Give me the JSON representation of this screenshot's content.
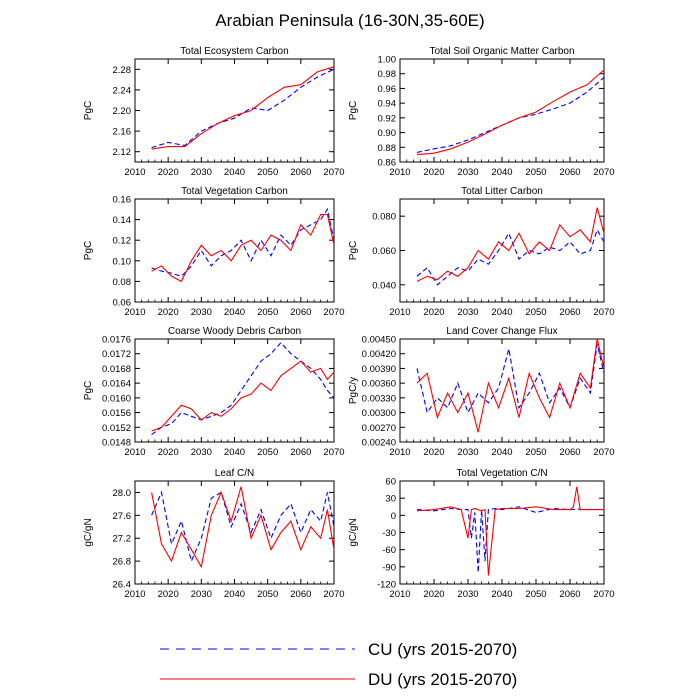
{
  "figure": {
    "title": "Arabian Peninsula (16-30N,35-60E)",
    "legend": [
      {
        "label": "CU (yrs 2015-2070)",
        "color": "#0000ff",
        "dash": true
      },
      {
        "label": "DU (yrs 2015-2070)",
        "color": "#ff0000",
        "dash": false
      }
    ],
    "colors": {
      "cu": "#0000ff",
      "du": "#ff0000",
      "axis": "#000000",
      "background": "#ffffff"
    }
  },
  "chart_data": [
    {
      "type": "line",
      "title": "Total Ecosystem Carbon",
      "ylabel": "PgC",
      "xlim": [
        2010,
        2070
      ],
      "ylim": [
        2.1,
        2.3
      ],
      "xticks": [
        2010,
        2020,
        2030,
        2040,
        2050,
        2060,
        2070
      ],
      "xtick_labels": [
        "2010",
        "2020",
        "2030",
        "2040",
        "2050",
        "2060",
        "2070"
      ],
      "yticks": [
        2.12,
        2.16,
        2.2,
        2.24,
        2.28
      ],
      "ytick_labels": [
        "2.12",
        "2.16",
        "2.20",
        "2.24",
        "2.28"
      ],
      "x": [
        2015,
        2020,
        2025,
        2030,
        2035,
        2040,
        2045,
        2050,
        2055,
        2060,
        2065,
        2070
      ],
      "series": [
        {
          "name": "CU",
          "color": "#0000ff",
          "dashed": true,
          "values": [
            2.128,
            2.138,
            2.132,
            2.16,
            2.175,
            2.185,
            2.205,
            2.2,
            2.22,
            2.245,
            2.265,
            2.28
          ]
        },
        {
          "name": "DU",
          "color": "#ff0000",
          "dashed": false,
          "values": [
            2.125,
            2.13,
            2.13,
            2.155,
            2.175,
            2.19,
            2.2,
            2.225,
            2.245,
            2.25,
            2.275,
            2.285
          ]
        }
      ]
    },
    {
      "type": "line",
      "title": "Total Soil Organic Matter Carbon",
      "ylabel": "PgC",
      "xlim": [
        2010,
        2070
      ],
      "ylim": [
        0.86,
        1.0
      ],
      "xticks": [
        2010,
        2020,
        2030,
        2040,
        2050,
        2060,
        2070
      ],
      "xtick_labels": [
        "2010",
        "2020",
        "2030",
        "2040",
        "2050",
        "2060",
        "2070"
      ],
      "yticks": [
        0.86,
        0.88,
        0.9,
        0.92,
        0.94,
        0.96,
        0.98,
        1.0
      ],
      "ytick_labels": [
        "0.86",
        "0.88",
        "0.90",
        "0.92",
        "0.94",
        "0.96",
        "0.98",
        "1.00"
      ],
      "x": [
        2015,
        2020,
        2025,
        2030,
        2035,
        2040,
        2045,
        2050,
        2055,
        2060,
        2065,
        2070
      ],
      "series": [
        {
          "name": "CU",
          "color": "#0000ff",
          "dashed": true,
          "values": [
            0.873,
            0.878,
            0.882,
            0.89,
            0.9,
            0.91,
            0.92,
            0.925,
            0.932,
            0.94,
            0.955,
            0.975
          ]
        },
        {
          "name": "DU",
          "color": "#ff0000",
          "dashed": false,
          "values": [
            0.87,
            0.872,
            0.878,
            0.887,
            0.898,
            0.91,
            0.92,
            0.928,
            0.942,
            0.955,
            0.965,
            0.985
          ]
        }
      ]
    },
    {
      "type": "line",
      "title": "Total Vegetation Carbon",
      "ylabel": "PgC",
      "xlim": [
        2010,
        2070
      ],
      "ylim": [
        0.06,
        0.16
      ],
      "xticks": [
        2010,
        2020,
        2030,
        2040,
        2050,
        2060,
        2070
      ],
      "xtick_labels": [
        "2010",
        "2020",
        "2030",
        "2040",
        "2050",
        "2060",
        "2070"
      ],
      "yticks": [
        0.06,
        0.08,
        0.1,
        0.12,
        0.14,
        0.16
      ],
      "ytick_labels": [
        "0.06",
        "0.08",
        "0.10",
        "0.12",
        "0.14",
        "0.16"
      ],
      "x": [
        2015,
        2018,
        2021,
        2024,
        2027,
        2030,
        2033,
        2036,
        2039,
        2042,
        2045,
        2048,
        2051,
        2054,
        2057,
        2060,
        2063,
        2066,
        2068,
        2070
      ],
      "series": [
        {
          "name": "CU",
          "color": "#0000ff",
          "dashed": true,
          "values": [
            0.093,
            0.09,
            0.088,
            0.085,
            0.095,
            0.11,
            0.095,
            0.105,
            0.11,
            0.12,
            0.1,
            0.12,
            0.105,
            0.125,
            0.115,
            0.13,
            0.135,
            0.14,
            0.15,
            0.12
          ]
        },
        {
          "name": "DU",
          "color": "#ff0000",
          "dashed": false,
          "values": [
            0.09,
            0.095,
            0.085,
            0.08,
            0.1,
            0.115,
            0.105,
            0.11,
            0.1,
            0.115,
            0.12,
            0.11,
            0.125,
            0.12,
            0.11,
            0.135,
            0.125,
            0.145,
            0.145,
            0.115
          ]
        }
      ]
    },
    {
      "type": "line",
      "title": "Total Litter Carbon",
      "ylabel": "PgC",
      "xlim": [
        2010,
        2070
      ],
      "ylim": [
        0.03,
        0.09
      ],
      "xticks": [
        2010,
        2020,
        2030,
        2040,
        2050,
        2060,
        2070
      ],
      "xtick_labels": [
        "2010",
        "2020",
        "2030",
        "2040",
        "2050",
        "2060",
        "2070"
      ],
      "yticks": [
        0.04,
        0.06,
        0.08
      ],
      "ytick_labels": [
        "0.040",
        "0.060",
        "0.080"
      ],
      "x": [
        2015,
        2018,
        2021,
        2024,
        2027,
        2030,
        2033,
        2036,
        2039,
        2042,
        2045,
        2048,
        2051,
        2054,
        2057,
        2060,
        2063,
        2066,
        2068,
        2070
      ],
      "series": [
        {
          "name": "CU",
          "color": "#0000ff",
          "dashed": true,
          "values": [
            0.045,
            0.05,
            0.04,
            0.045,
            0.05,
            0.048,
            0.055,
            0.052,
            0.06,
            0.07,
            0.055,
            0.06,
            0.058,
            0.062,
            0.06,
            0.065,
            0.058,
            0.06,
            0.072,
            0.065
          ]
        },
        {
          "name": "DU",
          "color": "#ff0000",
          "dashed": false,
          "values": [
            0.042,
            0.045,
            0.043,
            0.048,
            0.045,
            0.05,
            0.06,
            0.055,
            0.065,
            0.06,
            0.07,
            0.058,
            0.065,
            0.06,
            0.075,
            0.068,
            0.072,
            0.065,
            0.085,
            0.07
          ]
        }
      ]
    },
    {
      "type": "line",
      "title": "Coarse Woody Debris Carbon",
      "ylabel": "PgC",
      "xlim": [
        2010,
        2070
      ],
      "ylim": [
        0.0148,
        0.0176
      ],
      "xticks": [
        2010,
        2020,
        2030,
        2040,
        2050,
        2060,
        2070
      ],
      "xtick_labels": [
        "2010",
        "2020",
        "2030",
        "2040",
        "2050",
        "2060",
        "2070"
      ],
      "yticks": [
        0.0148,
        0.0152,
        0.0156,
        0.016,
        0.0164,
        0.0168,
        0.0172,
        0.0176
      ],
      "ytick_labels": [
        "0.0148",
        "0.0152",
        "0.0156",
        "0.0160",
        "0.0164",
        "0.0168",
        "0.0172",
        "0.0176"
      ],
      "x": [
        2015,
        2018,
        2021,
        2024,
        2027,
        2030,
        2033,
        2036,
        2039,
        2042,
        2045,
        2048,
        2051,
        2054,
        2057,
        2060,
        2063,
        2066,
        2068,
        2070
      ],
      "series": [
        {
          "name": "CU",
          "color": "#0000ff",
          "dashed": true,
          "values": [
            0.015,
            0.0152,
            0.0153,
            0.0156,
            0.0155,
            0.0154,
            0.0155,
            0.0156,
            0.0158,
            0.0162,
            0.0166,
            0.017,
            0.0172,
            0.0175,
            0.0172,
            0.017,
            0.0168,
            0.0165,
            0.0162,
            0.016
          ]
        },
        {
          "name": "DU",
          "color": "#ff0000",
          "dashed": false,
          "values": [
            0.0151,
            0.0152,
            0.0155,
            0.0158,
            0.0157,
            0.0154,
            0.0156,
            0.0155,
            0.0157,
            0.016,
            0.0161,
            0.0164,
            0.0162,
            0.0166,
            0.0168,
            0.017,
            0.0167,
            0.0168,
            0.0165,
            0.0167
          ]
        }
      ]
    },
    {
      "type": "line",
      "title": "Land Cover Change Flux",
      "ylabel": "PgC/y",
      "xlim": [
        2010,
        2070
      ],
      "ylim": [
        0.0024,
        0.0045
      ],
      "xticks": [
        2010,
        2020,
        2030,
        2040,
        2050,
        2060,
        2070
      ],
      "xtick_labels": [
        "2010",
        "2020",
        "2030",
        "2040",
        "2050",
        "2060",
        "2070"
      ],
      "yticks": [
        0.0024,
        0.0027,
        0.003,
        0.0033,
        0.0036,
        0.0039,
        0.0042,
        0.0045
      ],
      "ytick_labels": [
        "0.00240",
        "0.00270",
        "0.00300",
        "0.00330",
        "0.00360",
        "0.00390",
        "0.00420",
        "0.00450"
      ],
      "x": [
        2015,
        2018,
        2021,
        2024,
        2027,
        2030,
        2033,
        2036,
        2039,
        2042,
        2045,
        2048,
        2051,
        2054,
        2057,
        2060,
        2063,
        2066,
        2068,
        2070
      ],
      "series": [
        {
          "name": "CU",
          "color": "#0000ff",
          "dashed": true,
          "values": [
            0.0039,
            0.003,
            0.0033,
            0.0031,
            0.0036,
            0.003,
            0.0034,
            0.0032,
            0.0035,
            0.0043,
            0.0031,
            0.0034,
            0.0038,
            0.0032,
            0.0035,
            0.0031,
            0.0037,
            0.0034,
            0.0044,
            0.0038
          ]
        },
        {
          "name": "DU",
          "color": "#ff0000",
          "dashed": false,
          "values": [
            0.0036,
            0.0038,
            0.0029,
            0.0034,
            0.003,
            0.0034,
            0.0026,
            0.0036,
            0.0031,
            0.0037,
            0.0029,
            0.0038,
            0.0033,
            0.0029,
            0.0036,
            0.0031,
            0.0038,
            0.0035,
            0.0045,
            0.0039
          ]
        }
      ]
    },
    {
      "type": "line",
      "title": "Leaf C/N",
      "ylabel": "gC/gN",
      "xlim": [
        2010,
        2070
      ],
      "ylim": [
        26.4,
        28.2
      ],
      "xticks": [
        2010,
        2020,
        2030,
        2040,
        2050,
        2060,
        2070
      ],
      "xtick_labels": [
        "2010",
        "2020",
        "2030",
        "2040",
        "2050",
        "2060",
        "2070"
      ],
      "yticks": [
        26.4,
        26.8,
        27.2,
        27.6,
        28.0
      ],
      "ytick_labels": [
        "26.4",
        "26.8",
        "27.2",
        "27.6",
        "28.0"
      ],
      "x": [
        2015,
        2018,
        2021,
        2024,
        2027,
        2030,
        2033,
        2036,
        2039,
        2042,
        2045,
        2048,
        2051,
        2054,
        2057,
        2060,
        2063,
        2066,
        2068,
        2070
      ],
      "series": [
        {
          "name": "CU",
          "color": "#0000ff",
          "dashed": true,
          "values": [
            27.6,
            28.0,
            27.1,
            27.5,
            26.8,
            27.2,
            27.9,
            28.0,
            27.4,
            27.8,
            27.3,
            27.7,
            27.2,
            27.6,
            27.8,
            27.3,
            27.7,
            27.5,
            28.0,
            27.4
          ]
        },
        {
          "name": "DU",
          "color": "#ff0000",
          "dashed": false,
          "values": [
            28.0,
            27.1,
            26.8,
            27.3,
            27.0,
            26.7,
            27.6,
            28.0,
            27.5,
            28.1,
            27.2,
            27.6,
            27.0,
            27.3,
            27.5,
            27.0,
            27.4,
            27.2,
            27.7,
            27.0
          ]
        }
      ]
    },
    {
      "type": "line",
      "title": "Total Vegetation C/N",
      "ylabel": "gC/gN",
      "xlim": [
        2010,
        2070
      ],
      "ylim": [
        -120,
        60
      ],
      "xticks": [
        2010,
        2020,
        2030,
        2040,
        2050,
        2060,
        2070
      ],
      "xtick_labels": [
        "2010",
        "2020",
        "2030",
        "2040",
        "2050",
        "2060",
        "2070"
      ],
      "yticks": [
        -120,
        -90,
        -60,
        -30,
        0,
        30,
        60
      ],
      "ytick_labels": [
        "-120",
        "-90",
        "-60",
        "-30",
        "0",
        "30",
        "60"
      ],
      "x": [
        2015,
        2020,
        2025,
        2028,
        2030,
        2031,
        2032,
        2033,
        2034,
        2035,
        2036,
        2038,
        2040,
        2045,
        2050,
        2055,
        2060,
        2061,
        2062,
        2063,
        2065,
        2070
      ],
      "series": [
        {
          "name": "CU",
          "color": "#0000ff",
          "dashed": true,
          "values": [
            10,
            8,
            12,
            10,
            10,
            -40,
            5,
            -100,
            10,
            -80,
            10,
            12,
            10,
            15,
            5,
            12,
            10,
            10,
            12,
            10,
            10,
            10
          ]
        },
        {
          "name": "DU",
          "color": "#ff0000",
          "dashed": false,
          "values": [
            8,
            10,
            15,
            10,
            -40,
            10,
            12,
            10,
            8,
            10,
            -105,
            10,
            12,
            12,
            15,
            10,
            10,
            15,
            50,
            10,
            10,
            10
          ]
        }
      ]
    }
  ]
}
